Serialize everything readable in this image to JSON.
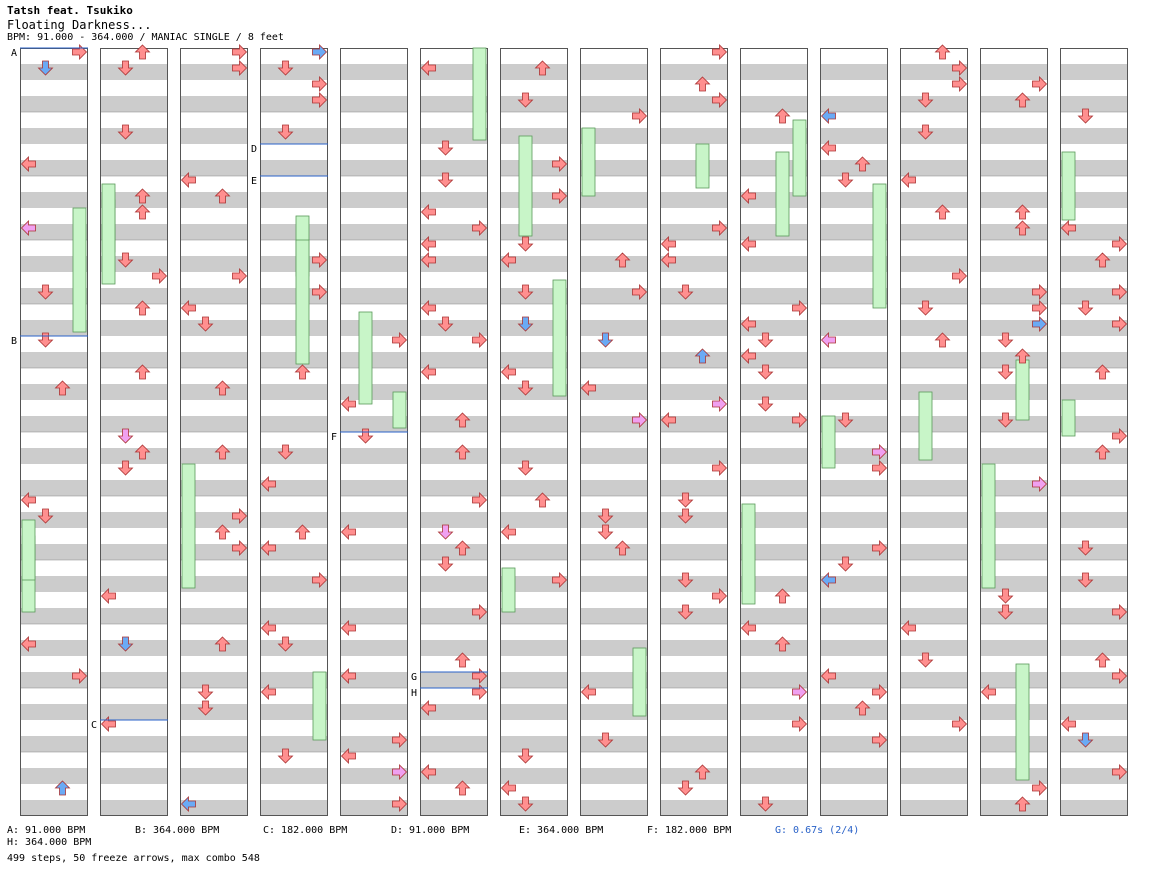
{
  "header": {
    "artist": "Tatsh feat. Tsukiko",
    "title": "Floating Darkness...",
    "info": "BPM: 91.000 - 364.000 / MANIAC SINGLE / 8 feet"
  },
  "chart": {
    "column_count": 14,
    "band_colors": [
      "#ffffff",
      "#cccccc"
    ],
    "arrow_colors": {
      "red": "#ff8f8f",
      "pink": "#f0a0f0",
      "blue": "#6aaaf5",
      "freeze": "#c8f5c8"
    },
    "markers": [
      {
        "label": "A",
        "col": 0,
        "row": 0
      },
      {
        "label": "B",
        "col": 0,
        "row": 36
      },
      {
        "label": "C",
        "col": 1,
        "row": 84
      },
      {
        "label": "D",
        "col": 3,
        "row": 12
      },
      {
        "label": "E",
        "col": 3,
        "row": 16
      },
      {
        "label": "F",
        "col": 4,
        "row": 48
      },
      {
        "label": "G",
        "col": 5,
        "row": 78
      },
      {
        "label": "H",
        "col": 5,
        "row": 80
      }
    ]
  },
  "footer": {
    "bpm_changes": [
      {
        "text": "A: 91.000 BPM"
      },
      {
        "text": "B: 364.000 BPM"
      },
      {
        "text": "C: 182.000 BPM"
      },
      {
        "text": "D: 91.000 BPM"
      },
      {
        "text": "E: 364.000 BPM"
      },
      {
        "text": "F: 182.000 BPM"
      },
      {
        "text": "G: 0.67s (2/4)",
        "color": "#2a62c8"
      },
      {
        "text": "H: 364.000 BPM"
      }
    ],
    "stats": "499 steps, 50 freeze arrows, max combo 548"
  }
}
